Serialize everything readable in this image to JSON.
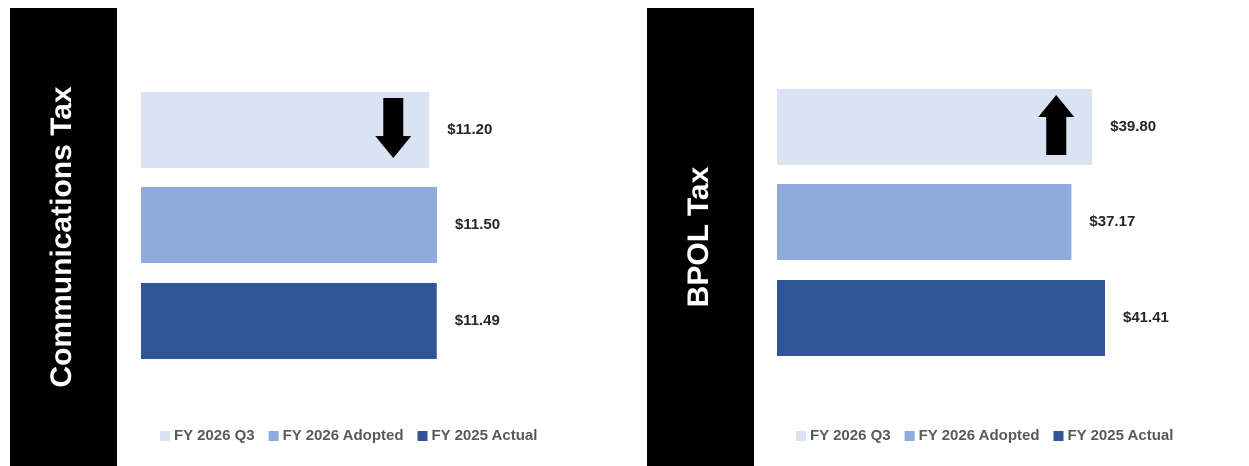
{
  "chart_data": [
    {
      "type": "bar",
      "orientation": "horizontal",
      "title": "Communications Tax",
      "categories": [
        "FY 2026 Q3",
        "FY 2026 Adopted",
        "FY 2025 Actual"
      ],
      "values": [
        11.2,
        11.5,
        11.49
      ],
      "value_labels": [
        "$11.20",
        "$11.50",
        "$11.49"
      ],
      "colors": [
        "#dae3f3",
        "#8faadc",
        "#2f5597"
      ],
      "legend": "bottom",
      "arrow": "down"
    },
    {
      "type": "bar",
      "orientation": "horizontal",
      "title": "BPOL Tax",
      "categories": [
        "FY 2026 Q3",
        "FY 2026 Adopted",
        "FY 2025 Actual"
      ],
      "values": [
        39.8,
        37.17,
        41.41
      ],
      "value_labels": [
        "$39.80",
        "$37.17",
        "$41.41"
      ],
      "colors": [
        "#dae3f3",
        "#8faadc",
        "#2f5597"
      ],
      "legend": "bottom",
      "arrow": "up"
    }
  ]
}
